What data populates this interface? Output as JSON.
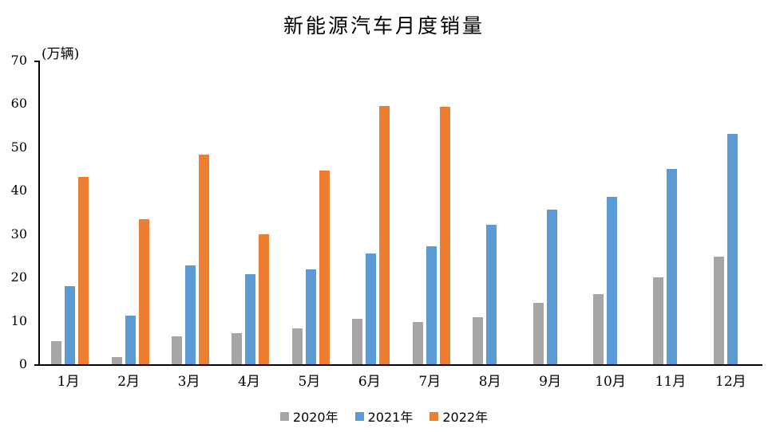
{
  "title": "新能源汽车月度销量",
  "unit_label": "(万辆)",
  "chart_data": {
    "type": "bar",
    "title": "新能源汽车月度销量",
    "ylabel": "(万辆)",
    "xlabel": "",
    "ylim": [
      0,
      70
    ],
    "yticks": [
      0,
      10,
      20,
      30,
      40,
      50,
      60,
      70
    ],
    "grid": false,
    "legend_position": "bottom",
    "categories": [
      "1月",
      "2月",
      "3月",
      "4月",
      "5月",
      "6月",
      "7月",
      "8月",
      "9月",
      "10月",
      "11月",
      "12月"
    ],
    "series": [
      {
        "name": "2020年",
        "color": "#A6A6A6",
        "values": [
          5.4,
          1.6,
          6.5,
          7.2,
          8.2,
          10.4,
          9.8,
          10.9,
          14.2,
          16.1,
          20.0,
          24.8
        ]
      },
      {
        "name": "2021年",
        "color": "#5B9BD5",
        "values": [
          18.0,
          11.2,
          22.7,
          20.7,
          21.8,
          25.6,
          27.2,
          32.1,
          35.7,
          38.5,
          45.1,
          53.1
        ]
      },
      {
        "name": "2022年",
        "color": "#ED7D31",
        "values": [
          43.1,
          33.4,
          48.4,
          29.9,
          44.7,
          59.6,
          59.3,
          null,
          null,
          null,
          null,
          null
        ]
      }
    ]
  }
}
